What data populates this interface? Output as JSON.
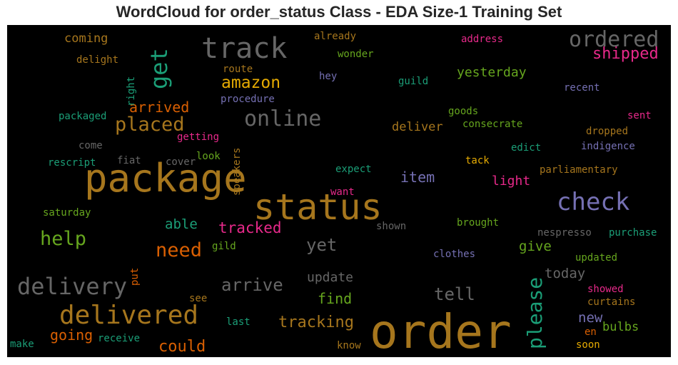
{
  "chart_data": {
    "type": "wordcloud",
    "title": "WordCloud for order_status Class - EDA Size-1 Training Set",
    "words": [
      {
        "text": "order",
        "color": "#a6761d"
      },
      {
        "text": "package",
        "color": "#a6761d"
      },
      {
        "text": "status",
        "color": "#a6761d"
      },
      {
        "text": "track",
        "color": "#666666"
      },
      {
        "text": "delivered",
        "color": "#a6761d"
      },
      {
        "text": "check",
        "color": "#7570b3"
      },
      {
        "text": "delivery",
        "color": "#666666"
      },
      {
        "text": "ordered",
        "color": "#666666"
      },
      {
        "text": "online",
        "color": "#666666"
      },
      {
        "text": "get",
        "color": "#1b9e77"
      },
      {
        "text": "please",
        "color": "#1b9e77"
      },
      {
        "text": "placed",
        "color": "#a6761d"
      },
      {
        "text": "help",
        "color": "#66a61e"
      },
      {
        "text": "need",
        "color": "#d95f02"
      },
      {
        "text": "tracking",
        "color": "#a6761d"
      },
      {
        "text": "shipped",
        "color": "#e7298a"
      },
      {
        "text": "amazon",
        "color": "#e6ab02"
      },
      {
        "text": "could",
        "color": "#d95f02"
      },
      {
        "text": "arrive",
        "color": "#666666"
      },
      {
        "text": "tell",
        "color": "#666666"
      },
      {
        "text": "yet",
        "color": "#666666"
      },
      {
        "text": "tracked",
        "color": "#e7298a"
      },
      {
        "text": "arrived",
        "color": "#d95f02"
      },
      {
        "text": "going",
        "color": "#d95f02"
      },
      {
        "text": "find",
        "color": "#66a61e"
      },
      {
        "text": "item",
        "color": "#7570b3"
      },
      {
        "text": "able",
        "color": "#1b9e77"
      },
      {
        "text": "give",
        "color": "#66a61e"
      },
      {
        "text": "today",
        "color": "#666666"
      },
      {
        "text": "new",
        "color": "#7570b3"
      },
      {
        "text": "update",
        "color": "#666666"
      },
      {
        "text": "light",
        "color": "#e7298a"
      },
      {
        "text": "yesterday",
        "color": "#66a61e"
      },
      {
        "text": "deliver",
        "color": "#a6761d"
      },
      {
        "text": "coming",
        "color": "#a6761d"
      },
      {
        "text": "bulbs",
        "color": "#66a61e"
      },
      {
        "text": "delight",
        "color": "#a6761d"
      },
      {
        "text": "right",
        "color": "#1b9e77"
      },
      {
        "text": "already",
        "color": "#a6761d"
      },
      {
        "text": "wonder",
        "color": "#66a61e"
      },
      {
        "text": "address",
        "color": "#e7298a"
      },
      {
        "text": "route",
        "color": "#a6761d"
      },
      {
        "text": "hey",
        "color": "#7570b3"
      },
      {
        "text": "guild",
        "color": "#1b9e77"
      },
      {
        "text": "recent",
        "color": "#7570b3"
      },
      {
        "text": "procedure",
        "color": "#7570b3"
      },
      {
        "text": "packaged",
        "color": "#1b9e77"
      },
      {
        "text": "goods",
        "color": "#66a61e"
      },
      {
        "text": "sent",
        "color": "#e7298a"
      },
      {
        "text": "consecrate",
        "color": "#66a61e"
      },
      {
        "text": "getting",
        "color": "#e7298a"
      },
      {
        "text": "dropped",
        "color": "#a6761d"
      },
      {
        "text": "come",
        "color": "#666666"
      },
      {
        "text": "edict",
        "color": "#1b9e77"
      },
      {
        "text": "indigence",
        "color": "#7570b3"
      },
      {
        "text": "fiat",
        "color": "#666666"
      },
      {
        "text": "look",
        "color": "#66a61e"
      },
      {
        "text": "tack",
        "color": "#e6ab02"
      },
      {
        "text": "rescript",
        "color": "#1b9e77"
      },
      {
        "text": "cover",
        "color": "#666666"
      },
      {
        "text": "speakers",
        "color": "#a6761d"
      },
      {
        "text": "expect",
        "color": "#1b9e77"
      },
      {
        "text": "parliamentary",
        "color": "#a6761d"
      },
      {
        "text": "want",
        "color": "#e7298a"
      },
      {
        "text": "saturday",
        "color": "#66a61e"
      },
      {
        "text": "shown",
        "color": "#666666"
      },
      {
        "text": "brought",
        "color": "#66a61e"
      },
      {
        "text": "nespresso",
        "color": "#666666"
      },
      {
        "text": "purchase",
        "color": "#1b9e77"
      },
      {
        "text": "gild",
        "color": "#66a61e"
      },
      {
        "text": "clothes",
        "color": "#7570b3"
      },
      {
        "text": "updated",
        "color": "#66a61e"
      },
      {
        "text": "put",
        "color": "#d95f02"
      },
      {
        "text": "showed",
        "color": "#e7298a"
      },
      {
        "text": "see",
        "color": "#a6761d"
      },
      {
        "text": "curtains",
        "color": "#a6761d"
      },
      {
        "text": "last",
        "color": "#1b9e77"
      },
      {
        "text": "en",
        "color": "#d95f02"
      },
      {
        "text": "make",
        "color": "#1b9e77"
      },
      {
        "text": "receive",
        "color": "#1b9e77"
      },
      {
        "text": "know",
        "color": "#a6761d"
      },
      {
        "text": "soon",
        "color": "#e6ab02"
      }
    ]
  }
}
